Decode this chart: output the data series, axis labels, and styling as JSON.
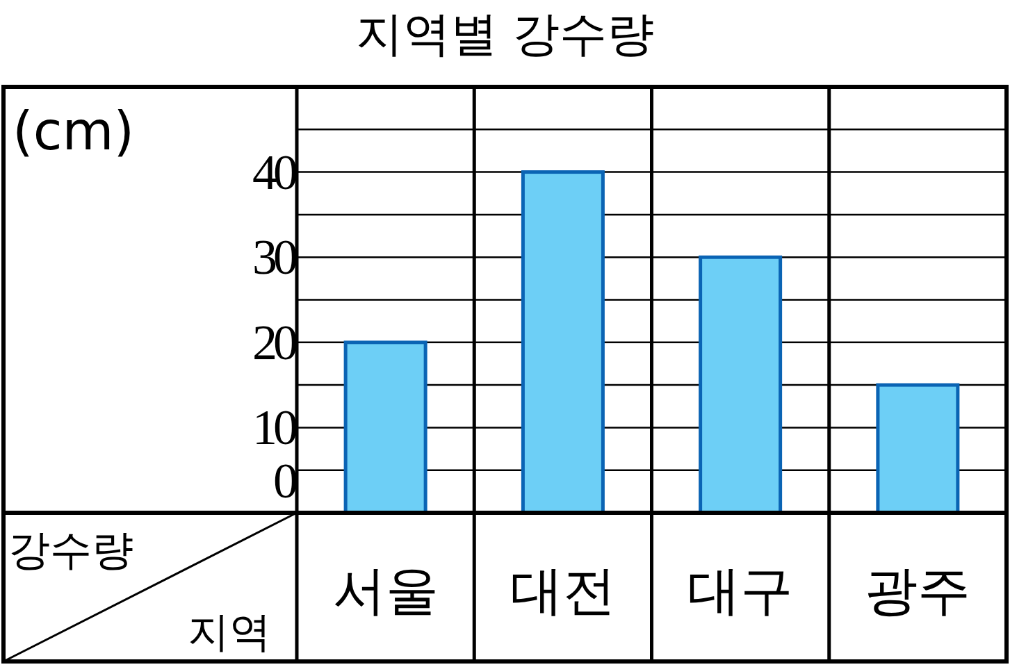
{
  "chart_data": {
    "type": "bar",
    "title": "지역별 강수량",
    "categories": [
      "서울",
      "대전",
      "대구",
      "광주"
    ],
    "values": [
      20,
      40,
      30,
      15
    ],
    "color": "#6dcff6",
    "ylabel": "강수량",
    "xlabel": "지역",
    "annotations": [
      "(cm)"
    ],
    "ylim": [
      0,
      50
    ],
    "yticks": [
      0,
      {
        "value": 5,
        "label": null
      },
      10,
      {
        "value": 15,
        "label": null
      },
      20,
      {
        "value": 25,
        "label": null
      },
      30,
      {
        "value": 35,
        "label": null
      },
      40,
      {
        "value": 45,
        "label": null
      }
    ],
    "grid": "y"
  }
}
